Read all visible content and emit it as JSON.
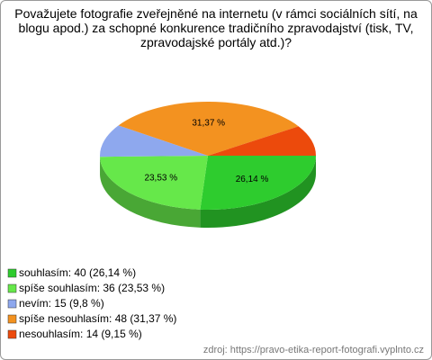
{
  "chart_data": {
    "type": "pie",
    "title": "Považujete fotografie zveřejněné na internetu (v rámci sociálních sítí, na blogu apod.) za schopné konkurence tradičního zpravodajství (tisk, TV, zpravodajské portály atd.)?",
    "categories": [
      "souhlasím: 40 (26,14 %)",
      "spíše souhlasím: 36 (23,53 %)",
      "nevím: 15 (9,8 %)",
      "spíše nesouhlasím: 48 (31,37 %)",
      "nesouhlasím: 14 (9,15 %)"
    ],
    "values": [
      26.14,
      23.53,
      9.8,
      31.37,
      9.15
    ],
    "value_labels": [
      "26,14 %",
      "23,53 %",
      null,
      "31,37 %",
      null
    ],
    "colors": [
      "#2ecc2e",
      "#66e84a",
      "#8ea8ee",
      "#f39220",
      "#ec4a0c"
    ],
    "source": "zdroj: https://pravo-etika-report-fotografi.vyplnto.cz"
  }
}
